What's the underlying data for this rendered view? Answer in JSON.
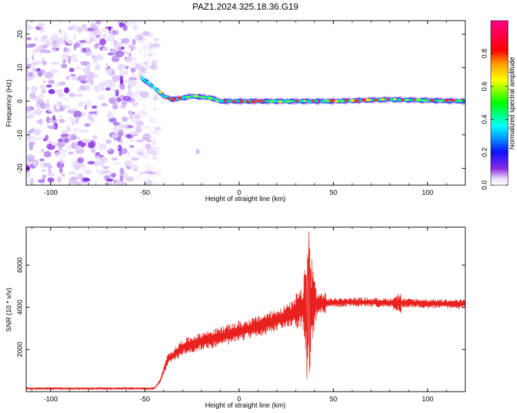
{
  "figure": {
    "title": "PAZ1.2024.325.18.36.G19"
  },
  "chart_data": [
    {
      "type": "heatmap",
      "title": "PAZ1.2024.325.18.36.G19",
      "xlabel": "Height of straight line (km)",
      "ylabel": "Frequency (Hz)",
      "xlim": [
        -113,
        120
      ],
      "ylim": [
        -25,
        24
      ],
      "xticks": [
        -100,
        -50,
        0,
        50,
        100
      ],
      "yticks": [
        -20,
        -10,
        0,
        10,
        20
      ],
      "grid": false,
      "colorbar": {
        "label": "Normalized spectral amplitude",
        "range": [
          0,
          1
        ],
        "ticks": [
          0.0,
          0.2,
          0.4,
          0.6,
          0.8
        ],
        "tick_labels": [
          "0.0",
          "0.2",
          "0.4",
          "0.6",
          "0.8"
        ],
        "colormap": "rainbow (white-violet-blue-cyan-green-yellow-red-magenta)"
      },
      "features": {
        "noise_region_x": [
          -113,
          -45
        ],
        "signal_track": [
          {
            "x": -52,
            "y": 7
          },
          {
            "x": -45,
            "y": 4
          },
          {
            "x": -40,
            "y": 1.5
          },
          {
            "x": -35,
            "y": 0.5
          },
          {
            "x": -25,
            "y": 1.5
          },
          {
            "x": -15,
            "y": 1
          },
          {
            "x": -10,
            "y": 0
          },
          {
            "x": 0,
            "y": 0
          },
          {
            "x": 20,
            "y": 0
          },
          {
            "x": 50,
            "y": 0
          },
          {
            "x": 80,
            "y": 0.5
          },
          {
            "x": 120,
            "y": 0
          }
        ],
        "isolated_spot": {
          "x": -22,
          "y": -15
        }
      }
    },
    {
      "type": "line",
      "xlabel": "Height of straight line (km)",
      "ylabel": "SNR (10 * v/v)",
      "xlim": [
        -113,
        120
      ],
      "ylim": [
        0,
        7800
      ],
      "xticks": [
        -100,
        -50,
        0,
        50,
        100
      ],
      "yticks": [
        2000,
        4000,
        6000
      ],
      "grid": false,
      "series": [
        {
          "color": "#e8211f",
          "envelope": [
            {
              "x": -113,
              "y": 150
            },
            {
              "x": -45,
              "y": 150
            },
            {
              "x": -42,
              "y": 500
            },
            {
              "x": -38,
              "y": 1500
            },
            {
              "x": -30,
              "y": 2100
            },
            {
              "x": -20,
              "y": 2400
            },
            {
              "x": -10,
              "y": 2600
            },
            {
              "x": 0,
              "y": 2850
            },
            {
              "x": 10,
              "y": 3100
            },
            {
              "x": 20,
              "y": 3400
            },
            {
              "x": 28,
              "y": 3700
            },
            {
              "x": 34,
              "y": 4000
            },
            {
              "x": 40,
              "y": 4200
            },
            {
              "x": 60,
              "y": 4250
            },
            {
              "x": 90,
              "y": 4200
            },
            {
              "x": 120,
              "y": 4150
            }
          ],
          "peak": {
            "x": 37,
            "y": 7600
          },
          "trough": {
            "x": 36,
            "y": 600
          }
        }
      ]
    }
  ]
}
